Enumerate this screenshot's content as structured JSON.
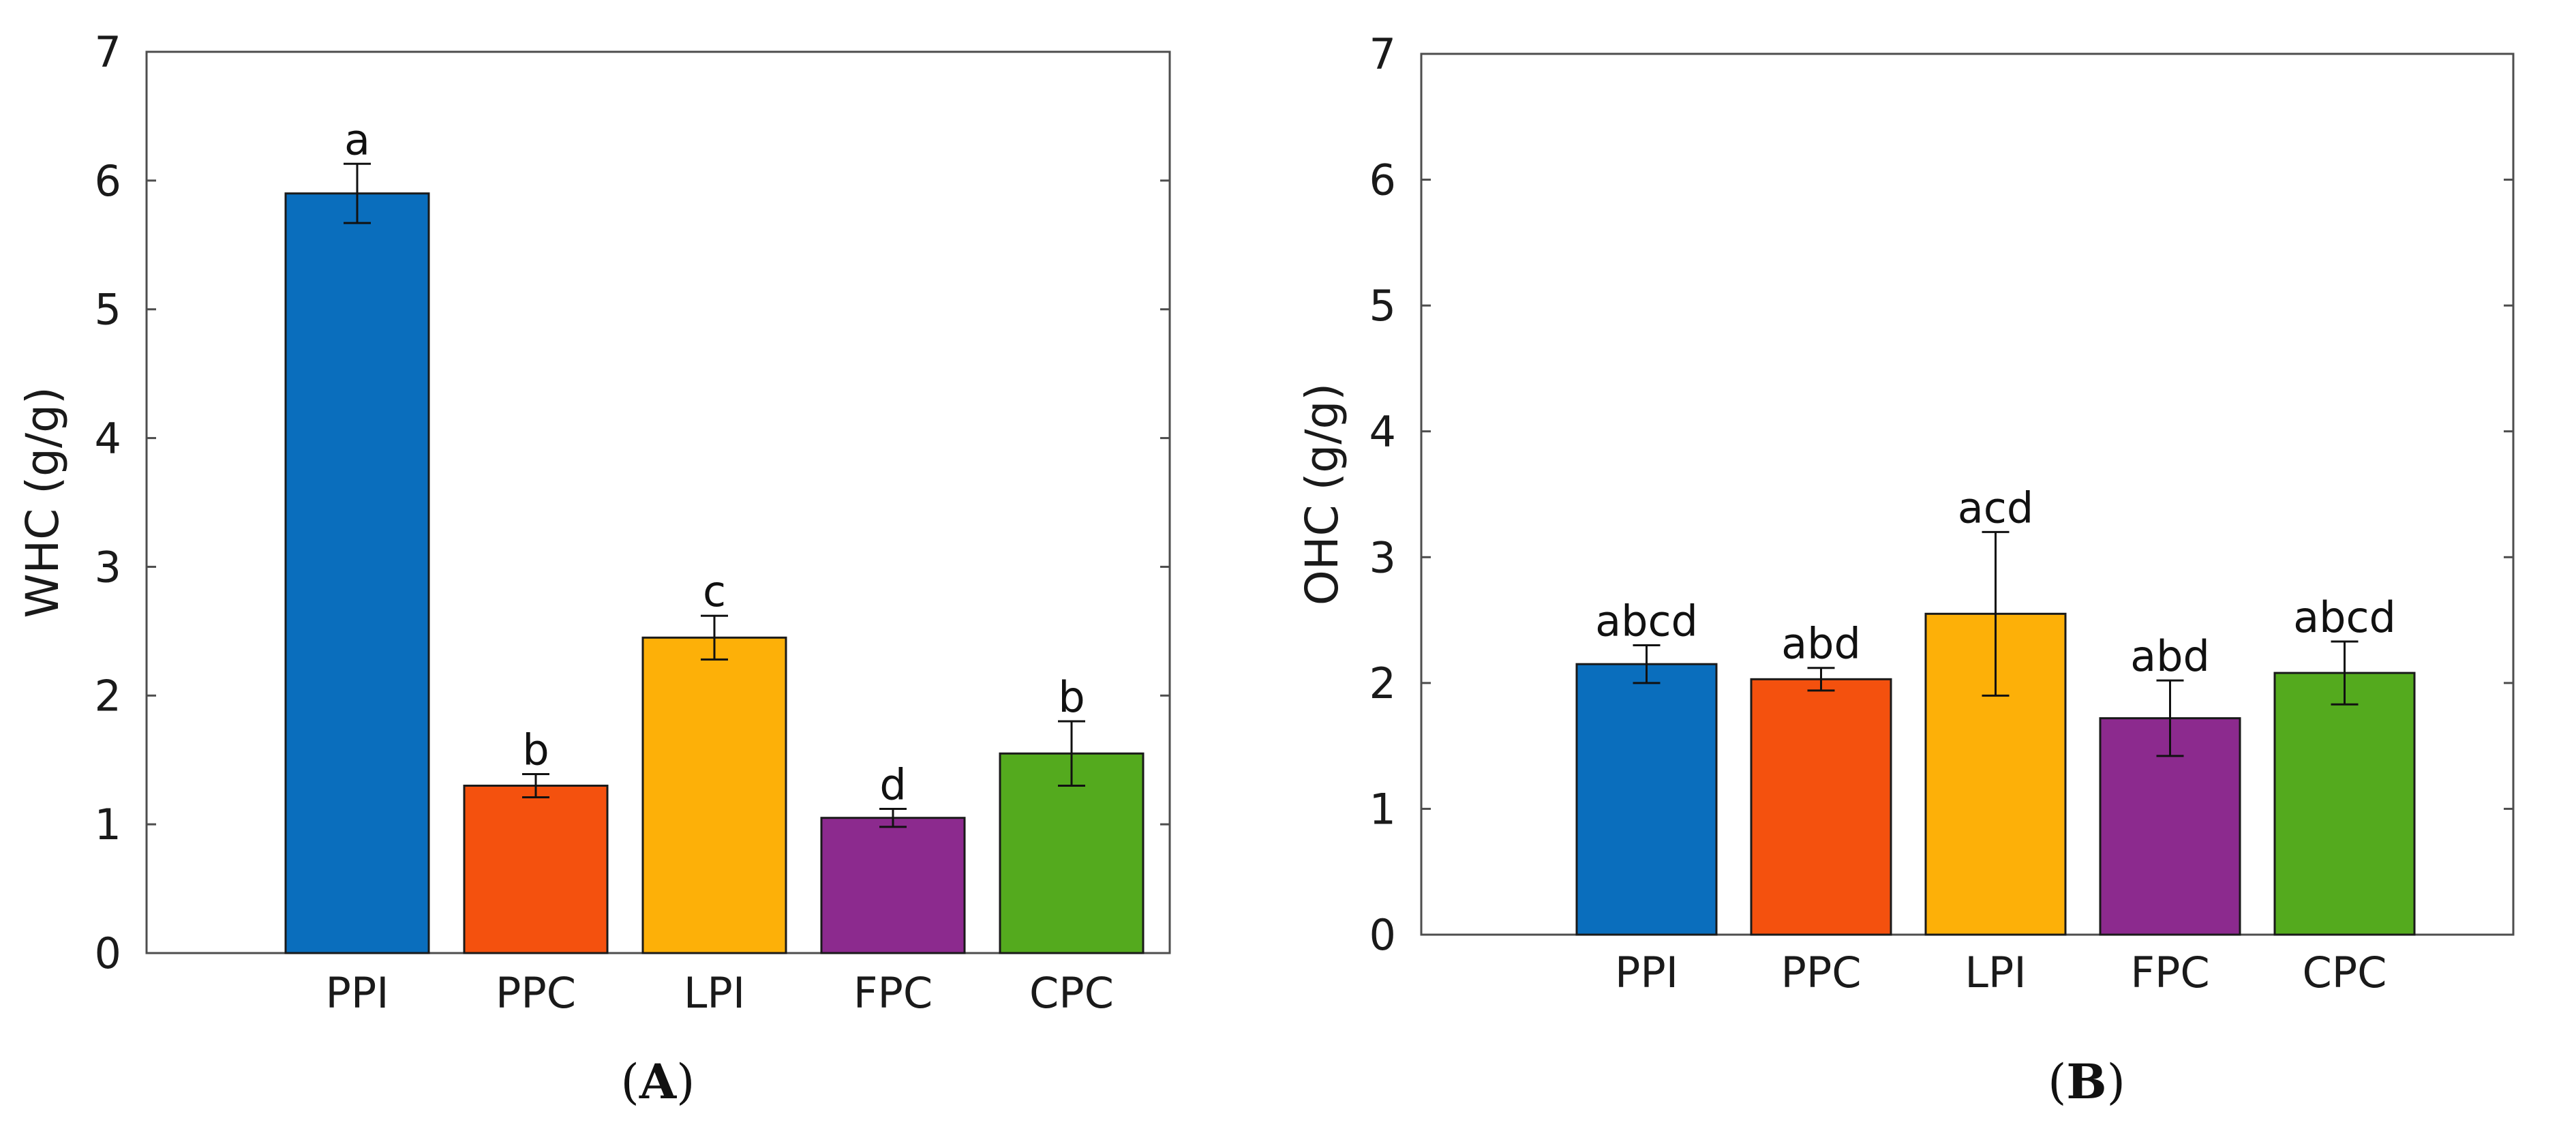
{
  "chart_data": [
    {
      "type": "bar",
      "panel_label": "A",
      "categories": [
        "PPI",
        "PPC",
        "LPI",
        "FPC",
        "CPC"
      ],
      "values": [
        5.9,
        1.3,
        2.45,
        1.05,
        1.55
      ],
      "errors": [
        0.23,
        0.09,
        0.17,
        0.07,
        0.25
      ],
      "significance": [
        "a",
        "b",
        "c",
        "d",
        "b"
      ],
      "colors": [
        "#0a6ebd",
        "#f4510e",
        "#fdb008",
        "#8c2a8e",
        "#54aa1e"
      ],
      "ylabel": "WHC (g/g)",
      "xlabel": "",
      "title": "",
      "ylim": [
        0,
        7
      ],
      "yticks": [
        "0",
        "1",
        "2",
        "3",
        "4",
        "5",
        "6",
        "7"
      ],
      "grid": false
    },
    {
      "type": "bar",
      "panel_label": "B",
      "categories": [
        "PPI",
        "PPC",
        "LPI",
        "FPC",
        "CPC"
      ],
      "values": [
        2.15,
        2.03,
        2.55,
        1.72,
        2.08
      ],
      "errors": [
        0.15,
        0.09,
        0.65,
        0.3,
        0.25
      ],
      "significance": [
        "abcd",
        "abd",
        "acd",
        "abd",
        "abcd"
      ],
      "colors": [
        "#0a6ebd",
        "#f4510e",
        "#fdb008",
        "#8c2a8e",
        "#54aa1e"
      ],
      "ylabel": "OHC (g/g)",
      "xlabel": "",
      "title": "",
      "ylim": [
        0,
        7
      ],
      "yticks": [
        "0",
        "1",
        "2",
        "3",
        "4",
        "5",
        "6",
        "7"
      ],
      "grid": false
    }
  ],
  "panel_labels": {
    "open": "(",
    "close": ")"
  }
}
